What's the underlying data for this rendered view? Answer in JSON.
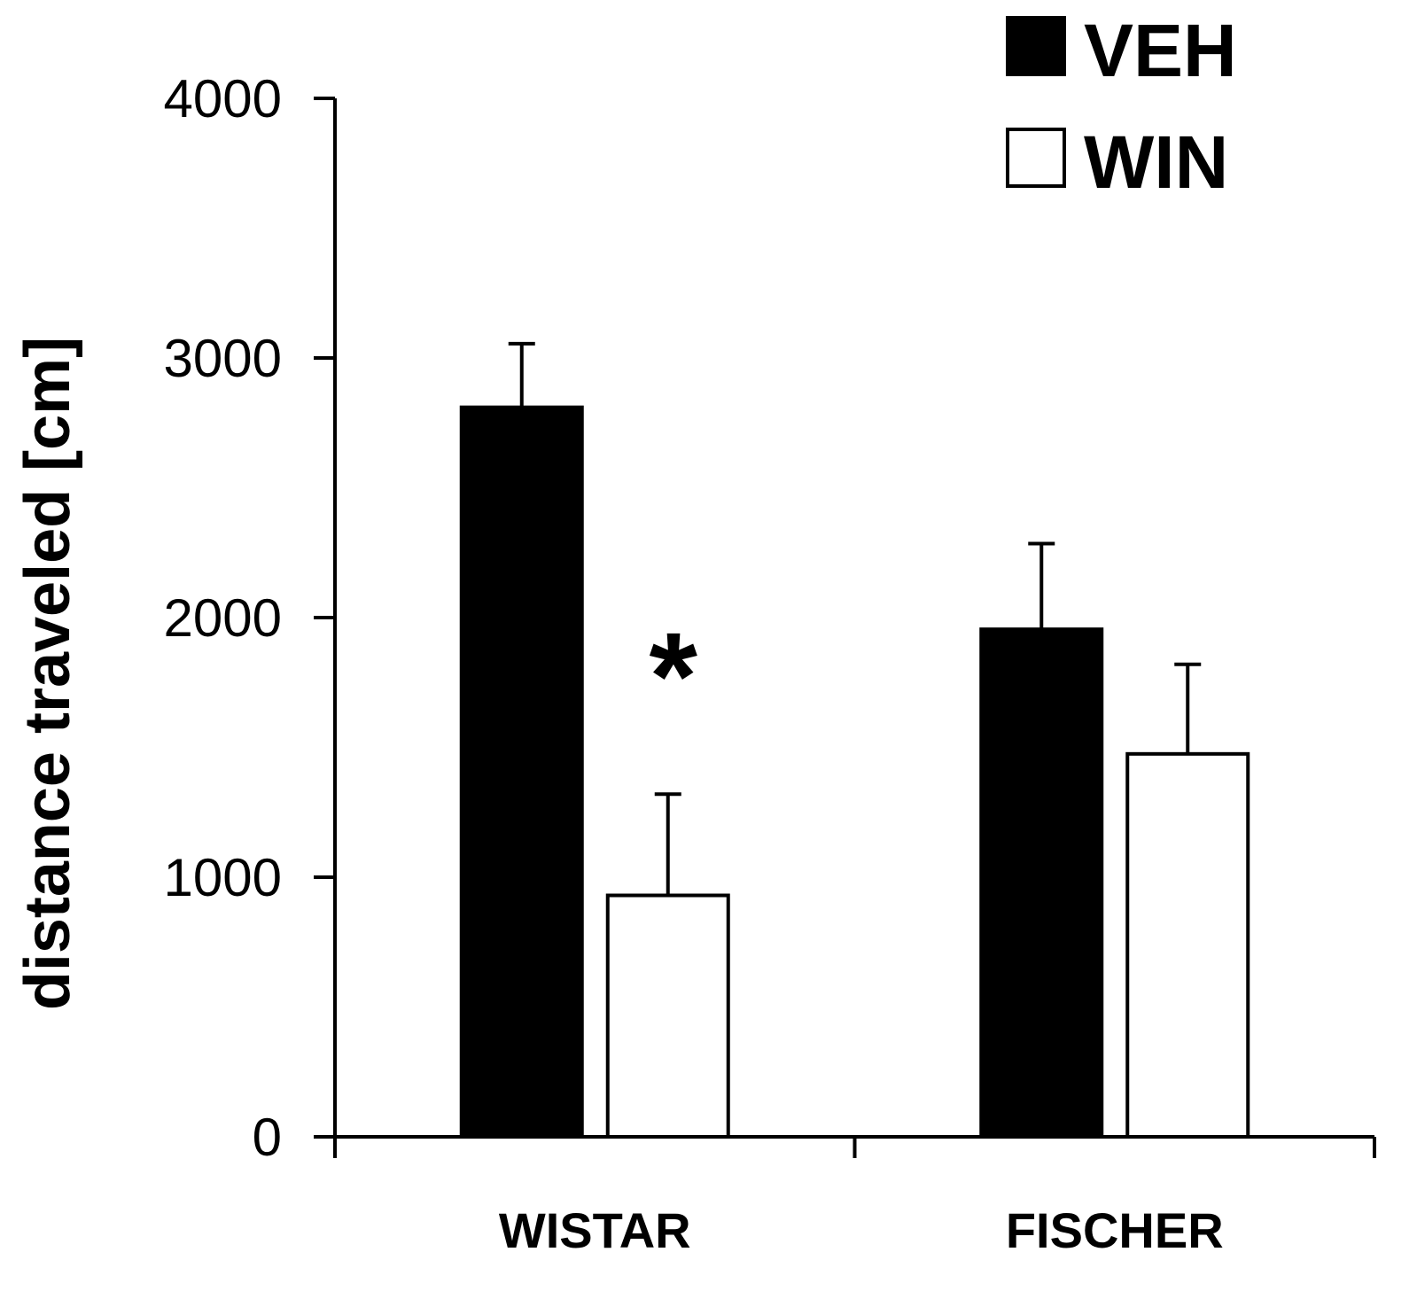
{
  "chart_data": {
    "type": "bar",
    "categories": [
      "WISTAR",
      "FISCHER"
    ],
    "series": [
      {
        "name": "VEH",
        "values": [
          2810,
          1955
        ],
        "errors": [
          245,
          330
        ],
        "color": "#000000"
      },
      {
        "name": "WIN",
        "values": [
          930,
          1475
        ],
        "errors": [
          390,
          345
        ],
        "color": "#ffffff"
      }
    ],
    "ylabel": "distance traveled [cm]",
    "xlabel": "",
    "ylim": [
      0,
      4000
    ],
    "yticks": [
      "0",
      "1000",
      "2000",
      "3000",
      "4000"
    ],
    "legend_position": "top-right",
    "grid": false,
    "annotations": [
      {
        "text": "*",
        "category": "WISTAR",
        "series": "WIN"
      }
    ]
  }
}
